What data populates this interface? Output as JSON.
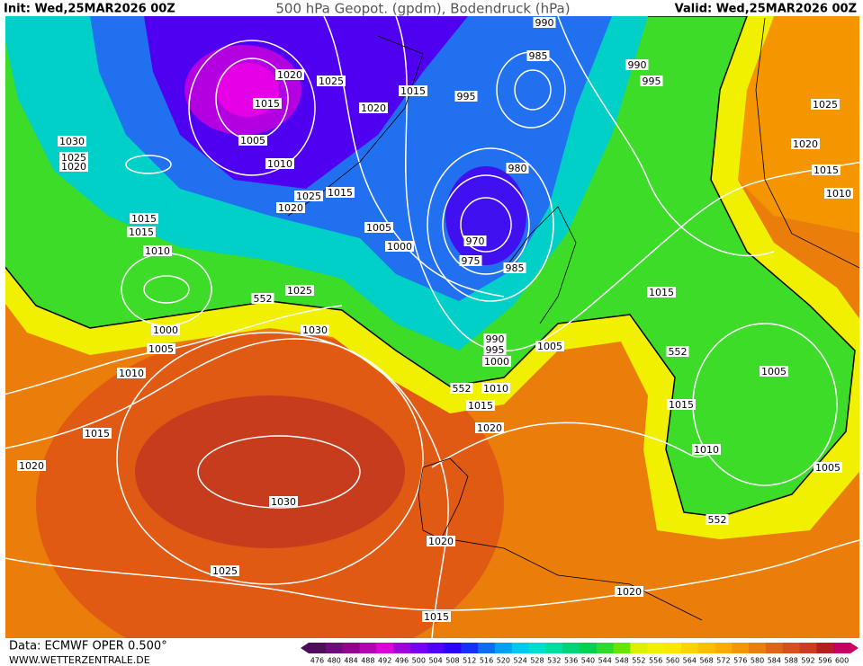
{
  "header": {
    "init": "Init: Wed,25MAR2026 00Z",
    "title": "500 hPa Geopot. (gpdm), Bodendruck (hPa)",
    "valid": "Valid: Wed,25MAR2026 00Z"
  },
  "isobar_labels": [
    "990",
    "985",
    "990",
    "995",
    "1020",
    "1025",
    "1015",
    "995",
    "1015",
    "1020",
    "1005",
    "1030",
    "1025",
    "1020",
    "1010",
    "980",
    "1025",
    "1015",
    "1020",
    "1015",
    "1015",
    "1005",
    "1000",
    "970",
    "975",
    "985",
    "1010",
    "1025",
    "552",
    "1015",
    "1000",
    "1030",
    "990",
    "995",
    "1005",
    "1005",
    "1000",
    "552",
    "1010",
    "1005",
    "552",
    "1010",
    "1015",
    "1015",
    "1020",
    "1015",
    "1010",
    "1020",
    "1005",
    "1030",
    "552",
    "1020",
    "1025",
    "1020",
    "1015",
    "1025",
    "1020",
    "1015",
    "1010"
  ],
  "legend": {
    "values": [
      476,
      480,
      484,
      488,
      492,
      496,
      500,
      504,
      508,
      512,
      516,
      520,
      524,
      528,
      532,
      536,
      540,
      544,
      548,
      552,
      556,
      560,
      564,
      568,
      572,
      576,
      580,
      584,
      588,
      592,
      596,
      600
    ],
    "colors": [
      "#4d0d59",
      "#6e0a7d",
      "#96008f",
      "#b400b4",
      "#dc00dc",
      "#a000dc",
      "#7800f0",
      "#5000f0",
      "#2d00f5",
      "#1432f5",
      "#0a6ef5",
      "#00a0f5",
      "#00c8f0",
      "#00dcd2",
      "#00dca0",
      "#00d278",
      "#00d250",
      "#28dc28",
      "#64e600",
      "#dcf000",
      "#f0f000",
      "#ffe600",
      "#ffd200",
      "#ffbe00",
      "#ffaa00",
      "#f59600",
      "#eb7d0a",
      "#e16414",
      "#d75019",
      "#cd3c1e",
      "#b91e1e",
      "#c80064"
    ]
  },
  "footer": {
    "source": "Data: ECMWF OPER 0.500°",
    "site": "WWW.WETTERZENTRALE.DE"
  }
}
